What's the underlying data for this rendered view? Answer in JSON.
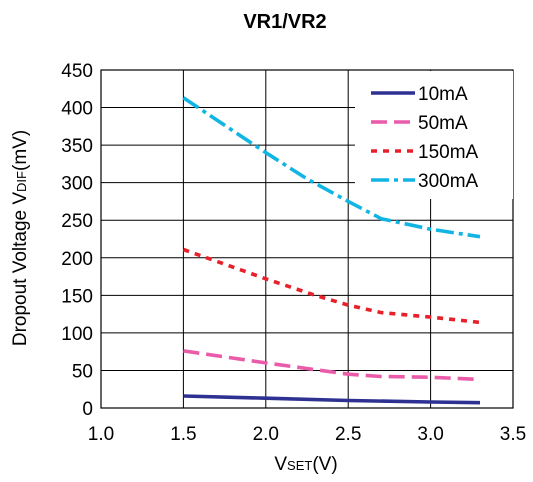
{
  "chart_data": {
    "type": "line",
    "title": "VR1/VR2",
    "xlabel": {
      "main": "V",
      "sub": "SET",
      "unit": "(V)"
    },
    "ylabel": {
      "main": "Dropout Voltage V",
      "sub": "DIF",
      "unit": "(mV)"
    },
    "xlim": [
      1.0,
      3.5
    ],
    "ylim": [
      0,
      450
    ],
    "xticks": [
      "1.0",
      "1.5",
      "2.0",
      "2.5",
      "3.0",
      "3.5"
    ],
    "yticks": [
      "0",
      "50",
      "100",
      "150",
      "200",
      "250",
      "300",
      "350",
      "400",
      "450"
    ],
    "grid": true,
    "legend_position": "top-right",
    "series": [
      {
        "name": "10mA",
        "color": "#2e3192",
        "dash": "solid",
        "points": [
          [
            1.5,
            16
          ],
          [
            2.0,
            13
          ],
          [
            2.5,
            10
          ],
          [
            3.0,
            8
          ],
          [
            3.3,
            7
          ]
        ]
      },
      {
        "name": "50mA",
        "color": "#ea5ca9",
        "dash": "long-dash",
        "points": [
          [
            1.5,
            76
          ],
          [
            2.0,
            60
          ],
          [
            2.5,
            45
          ],
          [
            2.7,
            42
          ],
          [
            3.0,
            41
          ],
          [
            3.3,
            38
          ]
        ]
      },
      {
        "name": "150mA",
        "color": "#e8202a",
        "dash": "short-dash",
        "points": [
          [
            1.5,
            211
          ],
          [
            2.0,
            172
          ],
          [
            2.3,
            150
          ],
          [
            2.5,
            137
          ],
          [
            2.7,
            127
          ],
          [
            3.0,
            121
          ],
          [
            3.3,
            114
          ]
        ]
      },
      {
        "name": "300mA",
        "color": "#11b5e4",
        "dash": "dash-dot",
        "points": [
          [
            1.5,
            413
          ],
          [
            2.0,
            340
          ],
          [
            2.25,
            305
          ],
          [
            2.5,
            275
          ],
          [
            2.7,
            252
          ],
          [
            3.0,
            238
          ],
          [
            3.3,
            228
          ]
        ]
      }
    ]
  }
}
